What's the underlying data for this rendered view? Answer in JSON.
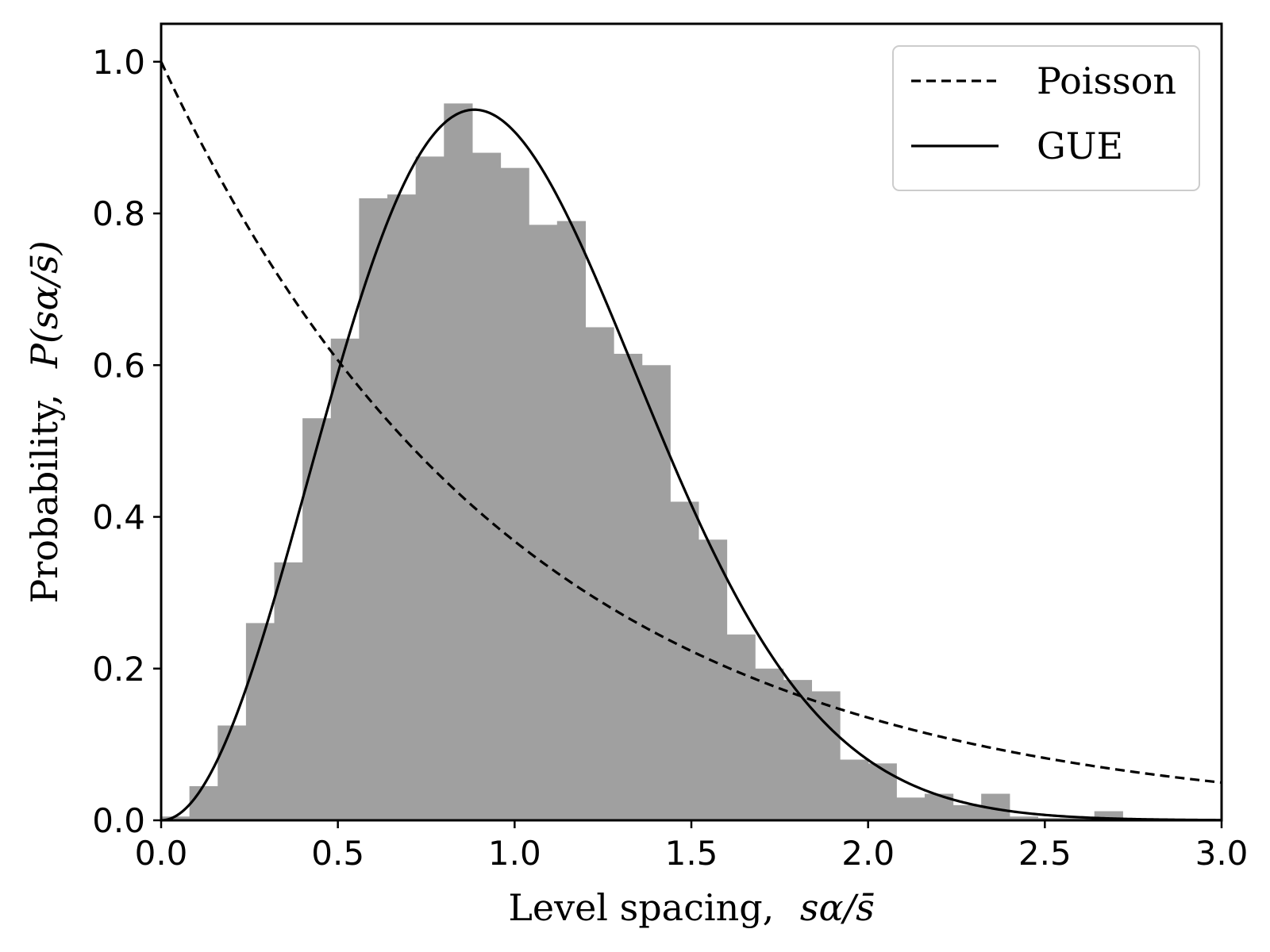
{
  "chart_data": {
    "type": "bar",
    "title": "",
    "xlabel_prefix": "Level spacing,",
    "xlabel_math": "sα/s̄",
    "ylabel_prefix": "Probability,",
    "ylabel_math": "P(sα/s̄)",
    "xlim": [
      0.0,
      3.0
    ],
    "ylim": [
      0.0,
      1.05
    ],
    "xticks": [
      "0.0",
      "0.5",
      "1.0",
      "1.5",
      "2.0",
      "2.5",
      "3.0"
    ],
    "xtick_values": [
      0.0,
      0.5,
      1.0,
      1.5,
      2.0,
      2.5,
      3.0
    ],
    "yticks": [
      "0.0",
      "0.2",
      "0.4",
      "0.6",
      "0.8",
      "1.0"
    ],
    "ytick_values": [
      0.0,
      0.2,
      0.4,
      0.6,
      0.8,
      1.0
    ],
    "grid": false,
    "legend_position": "top-right",
    "histogram": {
      "color": "#a0a0a0",
      "bin_width": 0.08,
      "bin_starts": [
        0.0,
        0.08,
        0.16,
        0.24,
        0.32,
        0.4,
        0.48,
        0.56,
        0.64,
        0.72,
        0.8,
        0.88,
        0.96,
        1.04,
        1.12,
        1.2,
        1.28,
        1.36,
        1.44,
        1.52,
        1.6,
        1.68,
        1.76,
        1.84,
        1.92,
        2.0,
        2.08,
        2.16,
        2.24,
        2.32,
        2.4,
        2.48,
        2.56,
        2.64
      ],
      "values": [
        0.005,
        0.045,
        0.125,
        0.26,
        0.34,
        0.53,
        0.635,
        0.82,
        0.825,
        0.875,
        0.945,
        0.88,
        0.86,
        0.785,
        0.79,
        0.65,
        0.615,
        0.6,
        0.42,
        0.37,
        0.245,
        0.2,
        0.185,
        0.17,
        0.08,
        0.075,
        0.03,
        0.035,
        0.02,
        0.035,
        0.005,
        0.003,
        0.003,
        0.012
      ]
    },
    "series": [
      {
        "name": "Poisson",
        "style": "dashed",
        "function": "exp(-s)",
        "color": "#000000"
      },
      {
        "name": "GUE",
        "style": "solid",
        "function": "32/pi^2 s^2 exp(-4 s^2/pi)",
        "color": "#000000"
      }
    ]
  }
}
